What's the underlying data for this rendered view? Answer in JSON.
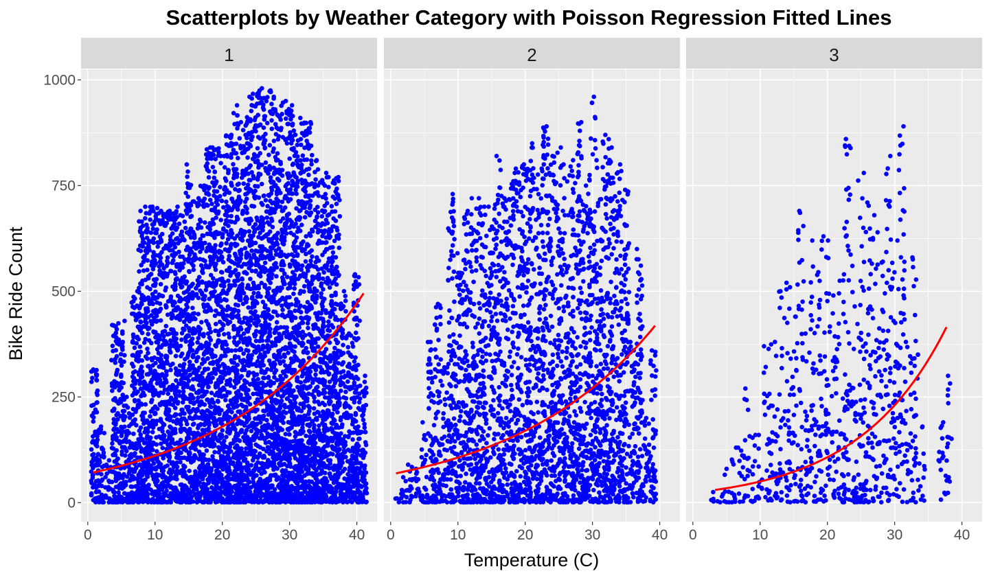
{
  "chart_data": {
    "type": "scatter",
    "title": "Scatterplots by Weather Category with Poisson Regression Fitted Lines",
    "xlabel": "Temperature (C)",
    "ylabel": "Bike Ride Count",
    "xlim": [
      -1,
      43
    ],
    "ylim": [
      -45,
      1025
    ],
    "x_ticks": [
      0,
      10,
      20,
      30,
      40
    ],
    "x_tick_labels": [
      "0",
      "10",
      "20",
      "30",
      "40"
    ],
    "y_ticks": [
      0,
      250,
      500,
      750,
      1000
    ],
    "y_tick_labels": [
      "0",
      "250",
      "500",
      "750",
      "1000"
    ],
    "grid": true,
    "point_color": "#0000FF",
    "line_color": "#FF0000",
    "panel_background": "#EBEBEB",
    "strip_background": "#D9D9D9",
    "panels": [
      {
        "label": "1",
        "fit": {
          "model": "poisson",
          "intercept_count": 68.6,
          "rate_per_degree": 0.0482,
          "x_range": [
            0.8,
            41
          ]
        },
        "density": 9,
        "envelope_max_count_by_temp": [
          [
            1,
            315
          ],
          [
            2,
            180
          ],
          [
            3,
            100
          ],
          [
            4,
            420
          ],
          [
            5,
            430
          ],
          [
            6,
            250
          ],
          [
            7,
            500
          ],
          [
            8,
            690
          ],
          [
            9,
            700
          ],
          [
            10,
            700
          ],
          [
            11,
            690
          ],
          [
            12,
            690
          ],
          [
            13,
            700
          ],
          [
            14,
            680
          ],
          [
            15,
            800
          ],
          [
            16,
            720
          ],
          [
            17,
            750
          ],
          [
            18,
            840
          ],
          [
            19,
            840
          ],
          [
            20,
            820
          ],
          [
            21,
            870
          ],
          [
            22,
            940
          ],
          [
            23,
            900
          ],
          [
            24,
            960
          ],
          [
            25,
            970
          ],
          [
            26,
            980
          ],
          [
            27,
            975
          ],
          [
            28,
            960
          ],
          [
            29,
            950
          ],
          [
            30,
            940
          ],
          [
            31,
            880
          ],
          [
            32,
            910
          ],
          [
            33,
            900
          ],
          [
            34,
            810
          ],
          [
            35,
            780
          ],
          [
            36,
            770
          ],
          [
            37,
            770
          ],
          [
            38,
            500
          ],
          [
            39,
            400
          ],
          [
            40,
            540
          ],
          [
            41,
            300
          ]
        ]
      },
      {
        "label": "2",
        "fit": {
          "model": "poisson",
          "intercept_count": 66.8,
          "rate_per_degree": 0.0467,
          "x_range": [
            0.8,
            39.3
          ]
        },
        "density": 5,
        "envelope_max_count_by_temp": [
          [
            1,
            10
          ],
          [
            2,
            60
          ],
          [
            3,
            90
          ],
          [
            4,
            80
          ],
          [
            5,
            190
          ],
          [
            6,
            380
          ],
          [
            7,
            470
          ],
          [
            8,
            320
          ],
          [
            9,
            730
          ],
          [
            10,
            590
          ],
          [
            11,
            690
          ],
          [
            12,
            720
          ],
          [
            13,
            720
          ],
          [
            14,
            700
          ],
          [
            15,
            700
          ],
          [
            16,
            820
          ],
          [
            17,
            720
          ],
          [
            18,
            780
          ],
          [
            19,
            790
          ],
          [
            20,
            800
          ],
          [
            21,
            850
          ],
          [
            22,
            790
          ],
          [
            23,
            890
          ],
          [
            24,
            820
          ],
          [
            25,
            840
          ],
          [
            26,
            800
          ],
          [
            27,
            810
          ],
          [
            28,
            900
          ],
          [
            29,
            750
          ],
          [
            30,
            960
          ],
          [
            31,
            810
          ],
          [
            32,
            870
          ],
          [
            33,
            840
          ],
          [
            34,
            800
          ],
          [
            35,
            740
          ],
          [
            36,
            380
          ],
          [
            37,
            600
          ],
          [
            38,
            200
          ],
          [
            39,
            360
          ]
        ]
      },
      {
        "label": "3",
        "fit": {
          "model": "poisson",
          "intercept_count": 23.3,
          "rate_per_degree": 0.0764,
          "x_range": [
            3.3,
            37.7
          ]
        },
        "density": 2,
        "envelope_max_count_by_temp": [
          [
            3,
            25
          ],
          [
            4,
            20
          ],
          [
            5,
            80
          ],
          [
            6,
            130
          ],
          [
            7,
            130
          ],
          [
            8,
            270
          ],
          [
            9,
            160
          ],
          [
            10,
            160
          ],
          [
            11,
            370
          ],
          [
            12,
            380
          ],
          [
            13,
            500
          ],
          [
            14,
            520
          ],
          [
            15,
            440
          ],
          [
            16,
            690
          ],
          [
            17,
            400
          ],
          [
            18,
            620
          ],
          [
            19,
            630
          ],
          [
            20,
            620
          ],
          [
            21,
            490
          ],
          [
            22,
            540
          ],
          [
            23,
            860
          ],
          [
            24,
            560
          ],
          [
            25,
            780
          ],
          [
            26,
            710
          ],
          [
            27,
            680
          ],
          [
            28,
            570
          ],
          [
            29,
            820
          ],
          [
            30,
            620
          ],
          [
            31,
            890
          ],
          [
            32,
            380
          ],
          [
            33,
            580
          ],
          [
            34,
            180
          ],
          [
            37,
            190
          ],
          [
            38,
            300
          ]
        ]
      }
    ]
  }
}
